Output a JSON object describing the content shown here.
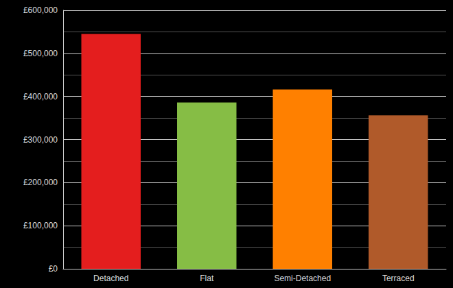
{
  "chart_data": {
    "type": "bar",
    "categories": [
      "Detached",
      "Flat",
      "Semi-Detached",
      "Terraced"
    ],
    "values": [
      545000,
      386000,
      416000,
      356000
    ],
    "colors": [
      "#e41e1e",
      "#86bd45",
      "#ff8000",
      "#b05a2a"
    ],
    "ylim": [
      0,
      600000
    ],
    "yticks": [
      {
        "value": 0,
        "label": "£0"
      },
      {
        "value": 100000,
        "label": "£100,000"
      },
      {
        "value": 200000,
        "label": "£200,000"
      },
      {
        "value": 300000,
        "label": "£300,000"
      },
      {
        "value": 400000,
        "label": "£400,000"
      },
      {
        "value": 500000,
        "label": "£500,000"
      },
      {
        "value": 600000,
        "label": "£600,000"
      }
    ],
    "grid": true
  }
}
